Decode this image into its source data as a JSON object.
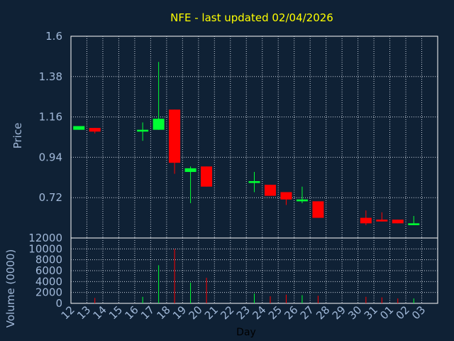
{
  "chart_data": [
    {
      "type": "candlestick",
      "title": "NFE - last updated 02/04/2026",
      "ylabel": "Price",
      "ylim": [
        0.5,
        1.6
      ],
      "yticks": [
        "1.6",
        "1.38",
        "1.16",
        "0.94",
        "0.72",
        "0.5"
      ],
      "grid": true,
      "colors": {
        "up": "#00ff33",
        "down": "#ff0000"
      },
      "candles": [
        {
          "day": "12",
          "open": 1.09,
          "high": 1.11,
          "low": 1.09,
          "close": 1.11
        },
        {
          "day": "13",
          "open": 1.1,
          "high": 1.1,
          "low": 1.07,
          "close": 1.08
        },
        {
          "day": "16",
          "open": 1.08,
          "high": 1.13,
          "low": 1.03,
          "close": 1.09
        },
        {
          "day": "17",
          "open": 1.09,
          "high": 1.46,
          "low": 1.09,
          "close": 1.15
        },
        {
          "day": "18",
          "open": 1.2,
          "high": 1.2,
          "low": 0.85,
          "close": 0.91
        },
        {
          "day": "19",
          "open": 0.86,
          "high": 0.89,
          "low": 0.69,
          "close": 0.88
        },
        {
          "day": "20",
          "open": 0.89,
          "high": 0.89,
          "low": 0.78,
          "close": 0.78
        },
        {
          "day": "23",
          "open": 0.8,
          "high": 0.86,
          "low": 0.75,
          "close": 0.81
        },
        {
          "day": "24",
          "open": 0.79,
          "high": 0.79,
          "low": 0.73,
          "close": 0.73
        },
        {
          "day": "25",
          "open": 0.75,
          "high": 0.75,
          "low": 0.68,
          "close": 0.71
        },
        {
          "day": "26",
          "open": 0.7,
          "high": 0.78,
          "low": 0.69,
          "close": 0.71
        },
        {
          "day": "27",
          "open": 0.7,
          "high": 0.7,
          "low": 0.61,
          "close": 0.61
        },
        {
          "day": "30",
          "open": 0.61,
          "high": 0.65,
          "low": 0.57,
          "close": 0.58
        },
        {
          "day": "31",
          "open": 0.6,
          "high": 0.64,
          "low": 0.59,
          "close": 0.59
        },
        {
          "day": "01",
          "open": 0.6,
          "high": 0.6,
          "low": 0.58,
          "close": 0.58
        },
        {
          "day": "02",
          "open": 0.57,
          "high": 0.62,
          "low": 0.57,
          "close": 0.58
        }
      ]
    },
    {
      "type": "bar",
      "ylabel": "Volume (0000)",
      "xlabel": "Day",
      "ylim": [
        0,
        12000
      ],
      "yticks": [
        "12000",
        "10000",
        "8000",
        "6000",
        "4000",
        "2000",
        "0"
      ],
      "grid": true,
      "categories": [
        "12",
        "13",
        "14",
        "15",
        "16",
        "17",
        "18",
        "19",
        "20",
        "21",
        "22",
        "23",
        "24",
        "25",
        "26",
        "27",
        "28",
        "29",
        "30",
        "31",
        "01",
        "02",
        "03"
      ],
      "volumes": [
        {
          "day": "12",
          "value": 0,
          "direction": "up"
        },
        {
          "day": "13",
          "value": 1000,
          "direction": "down"
        },
        {
          "day": "16",
          "value": 1200,
          "direction": "up"
        },
        {
          "day": "17",
          "value": 7000,
          "direction": "up"
        },
        {
          "day": "18",
          "value": 10000,
          "direction": "down"
        },
        {
          "day": "19",
          "value": 3800,
          "direction": "up"
        },
        {
          "day": "20",
          "value": 4700,
          "direction": "down"
        },
        {
          "day": "23",
          "value": 1800,
          "direction": "up"
        },
        {
          "day": "24",
          "value": 1300,
          "direction": "down"
        },
        {
          "day": "25",
          "value": 1600,
          "direction": "down"
        },
        {
          "day": "26",
          "value": 1500,
          "direction": "up"
        },
        {
          "day": "27",
          "value": 1400,
          "direction": "down"
        },
        {
          "day": "30",
          "value": 1200,
          "direction": "down"
        },
        {
          "day": "31",
          "value": 1100,
          "direction": "down"
        },
        {
          "day": "01",
          "value": 900,
          "direction": "down"
        },
        {
          "day": "02",
          "value": 900,
          "direction": "up"
        }
      ]
    }
  ]
}
